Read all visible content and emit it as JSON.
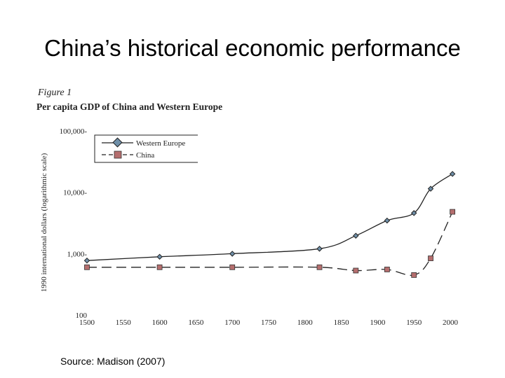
{
  "slide": {
    "title": "China’s historical economic performance",
    "source": "Source: Madison (2007)"
  },
  "colors": {
    "line": "#222222",
    "western_marker": "#6f8fa8",
    "china_marker": "#b56e6e"
  },
  "chart_data": {
    "type": "line",
    "figure_label": "Figure 1",
    "title": "Per capita GDP of China and Western Europe",
    "xlabel": "",
    "ylabel": "1990 international dollars (logarithmic scale)",
    "yscale": "log",
    "xlim": [
      1500,
      2000
    ],
    "ylim": [
      100,
      100000
    ],
    "x_ticks": [
      1500,
      1550,
      1600,
      1650,
      1700,
      1750,
      1800,
      1850,
      1900,
      1950,
      2000
    ],
    "y_ticks": [
      100,
      1000,
      10000,
      100000
    ],
    "y_tick_labels": [
      "100",
      "1,000-",
      "10,000-",
      "100,000-"
    ],
    "legend_position": "top-left",
    "series": [
      {
        "name": "Western Europe",
        "style": "solid",
        "marker": "diamond",
        "x": [
          1500,
          1600,
          1700,
          1820,
          1870,
          1913,
          1950,
          1973,
          2003
        ],
        "values": [
          771,
          889,
          997,
          1202,
          1960,
          3458,
          4579,
          11416,
          19912
        ]
      },
      {
        "name": "China",
        "style": "dashed",
        "marker": "square",
        "x": [
          1500,
          1600,
          1700,
          1820,
          1870,
          1913,
          1950,
          1973,
          2003
        ],
        "values": [
          600,
          600,
          600,
          600,
          530,
          552,
          448,
          838,
          4803
        ]
      }
    ]
  }
}
